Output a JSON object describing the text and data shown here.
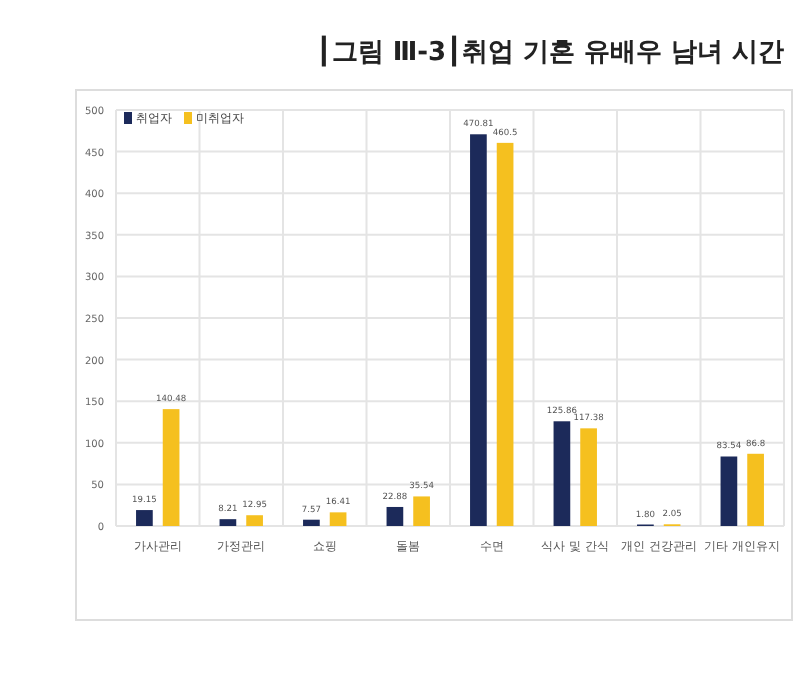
{
  "chart_data": {
    "type": "bar",
    "title": "┃그림 Ⅲ-3┃취업 기혼 유배우 남녀 시간",
    "categories": [
      "가사관리",
      "가정관리",
      "쇼핑",
      "돌봄",
      "수면",
      "식사 및 간식",
      "개인 건강관리",
      "기타 개인유지"
    ],
    "series": [
      {
        "name": "취업자",
        "color": "#1c2a5a",
        "values": [
          19.15,
          8.21,
          7.57,
          22.88,
          470.81,
          125.86,
          1.8,
          83.54
        ],
        "value_labels": [
          "19.15",
          "8.21",
          "7.57",
          "22.88",
          "470.81",
          "125.86",
          "1.80",
          "83.54"
        ]
      },
      {
        "name": "미취업자",
        "color": "#f5c01f",
        "values": [
          140.48,
          12.95,
          16.41,
          35.54,
          460.5,
          117.38,
          2.05,
          86.8
        ],
        "value_labels": [
          "140.48",
          "12.95",
          "16.41",
          "35.54",
          "460.5",
          "117.38",
          "2.05",
          "86.8"
        ]
      }
    ],
    "ylim": [
      0,
      500
    ],
    "yticks": [
      0,
      50,
      100,
      150,
      200,
      250,
      300,
      350,
      400,
      450,
      500
    ],
    "grid": true,
    "legend": "top left"
  }
}
